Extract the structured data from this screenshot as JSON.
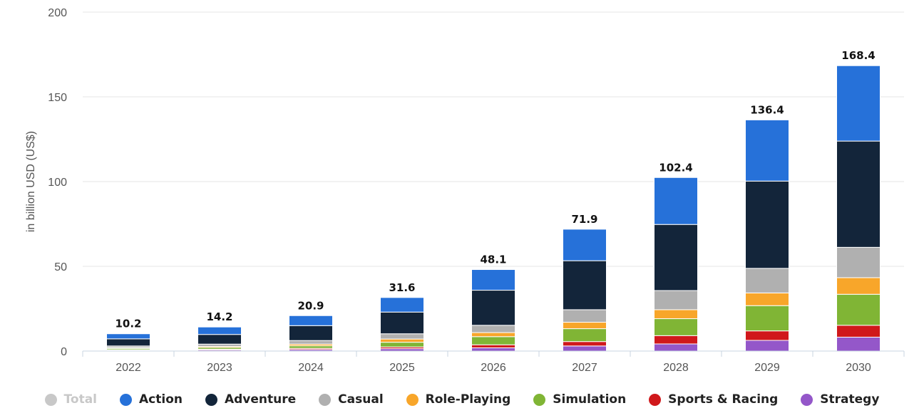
{
  "chart_data": {
    "type": "bar",
    "stacked": true,
    "ylabel": "in billion USD (US$)",
    "ylim": [
      0,
      200
    ],
    "yticks": [
      0,
      50,
      100,
      150,
      200
    ],
    "categories": [
      "2022",
      "2023",
      "2024",
      "2025",
      "2026",
      "2027",
      "2028",
      "2029",
      "2030"
    ],
    "totals": [
      10.2,
      14.2,
      20.9,
      31.6,
      48.1,
      71.9,
      102.4,
      136.4,
      168.4
    ],
    "series": [
      {
        "name": "Strategy",
        "color": "#9457c9",
        "values": [
          0.4,
          0.6,
          0.9,
          1.4,
          1.9,
          3.0,
          4.2,
          6.3,
          8.2
        ]
      },
      {
        "name": "Sports & Racing",
        "color": "#d0181b",
        "values": [
          0.4,
          0.5,
          0.7,
          1.0,
          1.8,
          2.6,
          4.9,
          5.6,
          7.0
        ]
      },
      {
        "name": "Simulation",
        "color": "#80b535",
        "values": [
          0.8,
          1.0,
          1.5,
          2.8,
          4.8,
          7.6,
          10.0,
          14.9,
          18.3
        ]
      },
      {
        "name": "Role-Playing",
        "color": "#f8a62a",
        "values": [
          0.4,
          0.6,
          1.0,
          1.9,
          2.4,
          3.8,
          5.3,
          7.5,
          9.8
        ]
      },
      {
        "name": "Casual",
        "color": "#b0b0b0",
        "values": [
          1.0,
          1.4,
          2.1,
          3.1,
          4.3,
          7.4,
          11.3,
          14.5,
          17.9
        ]
      },
      {
        "name": "Adventure",
        "color": "#13253a",
        "values": [
          4.2,
          5.7,
          8.8,
          12.8,
          20.7,
          28.9,
          39.0,
          51.5,
          62.7
        ]
      },
      {
        "name": "Action",
        "color": "#2671d9",
        "values": [
          3.0,
          4.4,
          5.9,
          8.6,
          12.2,
          18.6,
          27.7,
          36.1,
          44.5
        ]
      }
    ],
    "legend": {
      "placement": "bottom",
      "items": [
        {
          "name": "Total",
          "color": "#c8c8c8",
          "active": false
        },
        {
          "name": "Action",
          "color": "#2671d9",
          "active": true
        },
        {
          "name": "Adventure",
          "color": "#13253a",
          "active": true
        },
        {
          "name": "Casual",
          "color": "#b0b0b0",
          "active": true
        },
        {
          "name": "Role-Playing",
          "color": "#f8a62a",
          "active": true
        },
        {
          "name": "Simulation",
          "color": "#80b535",
          "active": true
        },
        {
          "name": "Sports & Racing",
          "color": "#d0181b",
          "active": true
        },
        {
          "name": "Strategy",
          "color": "#9457c9",
          "active": true
        }
      ]
    },
    "grid": true
  }
}
